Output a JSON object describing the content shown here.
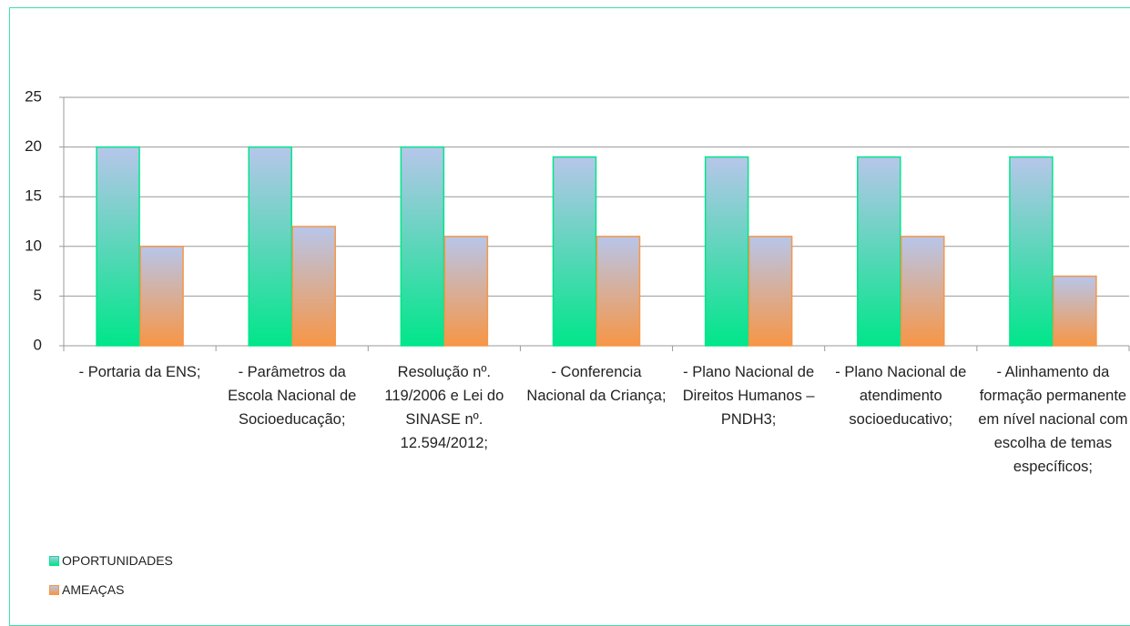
{
  "chart_data": {
    "type": "bar",
    "categories": [
      "- Portaria da ENS;",
      "- Parâmetros da Escola Nacional de Socioeducação;",
      "Resolução nº. 119/2006 e Lei do SINASE nº. 12.594/2012;",
      "- Conferencia Nacional da Criança;",
      "- Plano Nacional de Direitos Humanos – PNDH3;",
      "- Plano Nacional de atendimento socioeducativo;",
      "- Alinhamento da formação permanente em nível nacional com escolha de temas específicos;"
    ],
    "series": [
      {
        "name": "OPORTUNIDADES",
        "color": "#00e68a",
        "values": [
          20,
          20,
          20,
          19,
          19,
          19,
          19
        ]
      },
      {
        "name": "AMEAÇAS",
        "color": "#f79646",
        "values": [
          10,
          12,
          11,
          11,
          11,
          11,
          7
        ]
      }
    ],
    "ylim": [
      0,
      25
    ],
    "yticks": [
      0,
      5,
      10,
      15,
      20,
      25
    ],
    "grid": true,
    "legend": "bottom-left"
  }
}
